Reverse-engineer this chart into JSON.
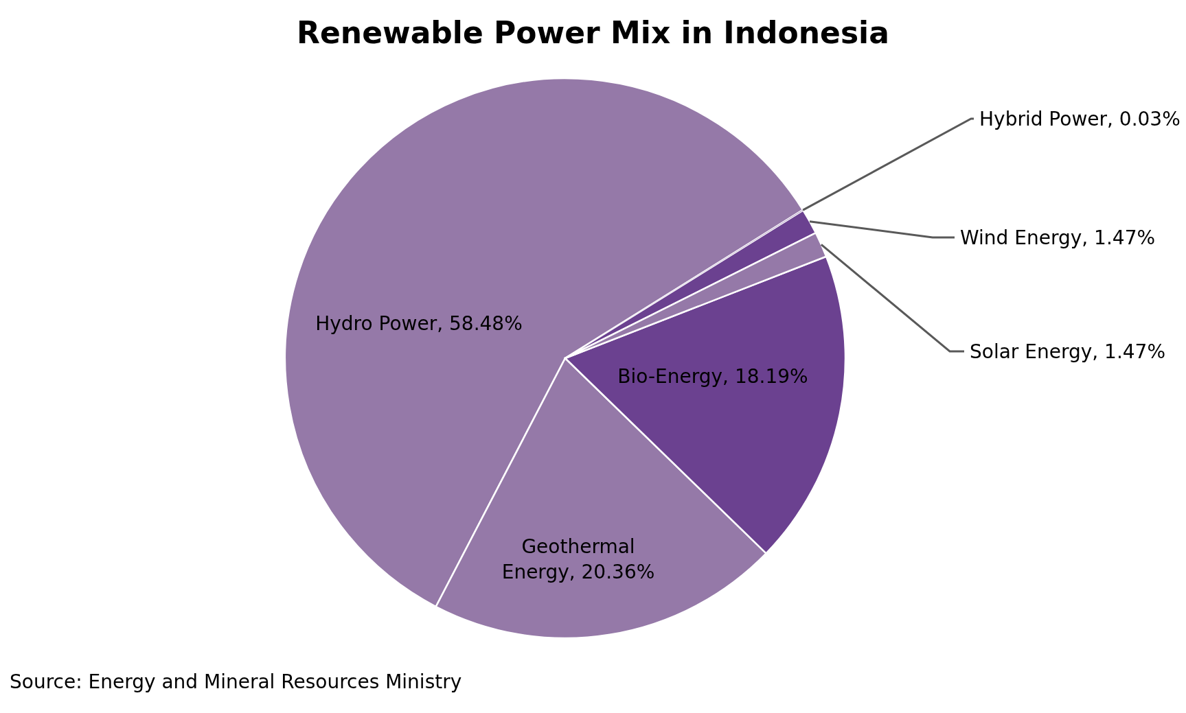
{
  "chart_data": {
    "type": "pie",
    "title": "Renewable Power Mix in Indonesia",
    "categories": [
      "Hybrid Power",
      "Wind Energy",
      "Solar Energy",
      "Bio-Energy",
      "Geothermal Energy",
      "Hydro Power"
    ],
    "values": [
      0.03,
      1.47,
      1.47,
      18.19,
      20.36,
      58.48
    ],
    "value_labels": [
      "0.03%",
      "1.47%",
      "1.47%",
      "18.19%",
      "20.36%",
      "58.48%"
    ],
    "colors": [
      "#a58dba",
      "#6b4190",
      "#9579a8",
      "#6b4190",
      "#9579a8",
      "#9579a8"
    ],
    "annotations": [
      "Source: Energy and Mineral Resources Ministry"
    ]
  }
}
